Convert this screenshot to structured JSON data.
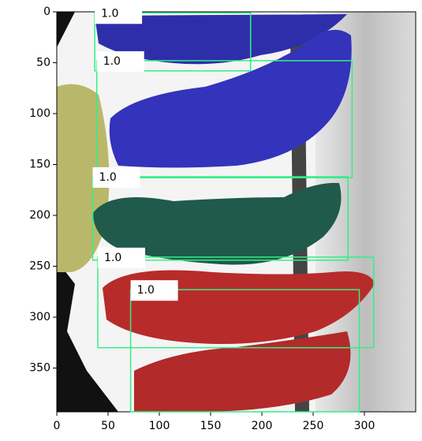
{
  "chart_data": {
    "type": "image",
    "xlim": [
      0,
      350
    ],
    "ylim": [
      393,
      0
    ],
    "xticks": [
      0,
      50,
      100,
      150,
      200,
      250,
      300
    ],
    "yticks": [
      0,
      50,
      100,
      150,
      200,
      250,
      300,
      350
    ],
    "box_color": "#33ee88",
    "boxes": [
      [
        37,
        1,
        189,
        58
      ],
      [
        39,
        48,
        288,
        163
      ],
      [
        35,
        162,
        284,
        244
      ],
      [
        40,
        241,
        309,
        330
      ],
      [
        72,
        273,
        295,
        393
      ]
    ],
    "scores": [
      1,
      1,
      1,
      1,
      1
    ],
    "value_labels": [
      "1.0",
      "1.0",
      "1.0",
      "1.0",
      "1.0"
    ]
  }
}
